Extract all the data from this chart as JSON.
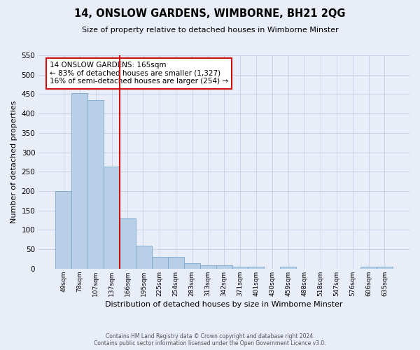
{
  "title": "14, ONSLOW GARDENS, WIMBORNE, BH21 2QG",
  "subtitle": "Size of property relative to detached houses in Wimborne Minster",
  "xlabel": "Distribution of detached houses by size in Wimborne Minster",
  "ylabel": "Number of detached properties",
  "footer_line1": "Contains HM Land Registry data © Crown copyright and database right 2024.",
  "footer_line2": "Contains public sector information licensed under the Open Government Licence v3.0.",
  "categories": [
    "49sqm",
    "78sqm",
    "107sqm",
    "137sqm",
    "166sqm",
    "195sqm",
    "225sqm",
    "254sqm",
    "283sqm",
    "313sqm",
    "342sqm",
    "371sqm",
    "401sqm",
    "430sqm",
    "459sqm",
    "488sqm",
    "518sqm",
    "547sqm",
    "576sqm",
    "606sqm",
    "635sqm"
  ],
  "values": [
    200,
    452,
    435,
    263,
    130,
    60,
    30,
    30,
    15,
    8,
    8,
    5,
    5,
    0,
    5,
    0,
    0,
    0,
    0,
    5,
    5
  ],
  "bar_color": "#b8cfe8",
  "bar_edge_color": "#7aaacf",
  "grid_color": "#c8d4e8",
  "background_color": "#e8edf8",
  "property_bin_index": 4,
  "annotation_text": "14 ONSLOW GARDENS: 165sqm\n← 83% of detached houses are smaller (1,327)\n16% of semi-detached houses are larger (254) →",
  "vline_color": "#cc1111",
  "annotation_box_edgecolor": "#cc1111",
  "ylim": [
    0,
    550
  ],
  "yticks": [
    0,
    50,
    100,
    150,
    200,
    250,
    300,
    350,
    400,
    450,
    500,
    550
  ]
}
